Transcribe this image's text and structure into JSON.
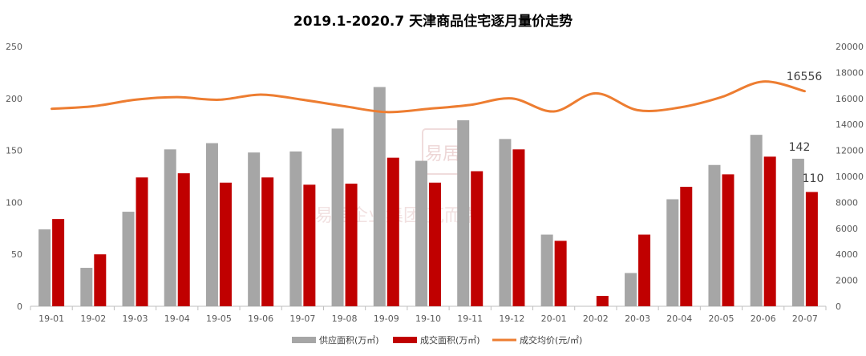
{
  "chart_data": {
    "type": "bar",
    "title": "2019.1-2020.7 天津商品住宅逐月量价走势",
    "categories": [
      "19-01",
      "19-02",
      "19-03",
      "19-04",
      "19-05",
      "19-06",
      "19-07",
      "19-08",
      "19-09",
      "19-10",
      "19-11",
      "19-12",
      "20-01",
      "20-02",
      "20-03",
      "20-04",
      "20-05",
      "20-06",
      "20-07"
    ],
    "series": [
      {
        "name": "供应面积(万㎡)",
        "type": "bar",
        "axis": "left",
        "color": "#A6A6A6",
        "values": [
          74,
          37,
          91,
          151,
          157,
          148,
          149,
          171,
          211,
          140,
          179,
          161,
          69,
          0,
          32,
          103,
          136,
          165,
          142
        ]
      },
      {
        "name": "成交面积(万㎡)",
        "type": "bar",
        "axis": "left",
        "color": "#C00000",
        "values": [
          84,
          50,
          124,
          128,
          119,
          124,
          117,
          118,
          143,
          119,
          130,
          151,
          63,
          10,
          69,
          115,
          127,
          144,
          110
        ]
      },
      {
        "name": "成交均价(元/㎡)",
        "type": "line",
        "axis": "right",
        "color": "#ED7D31",
        "values": [
          15200,
          15400,
          15900,
          16100,
          15900,
          16300,
          15900,
          15400,
          14950,
          15200,
          15500,
          16000,
          15000,
          16400,
          15100,
          15300,
          16100,
          17300,
          16556
        ]
      }
    ],
    "ylim_left": [
      0,
      250
    ],
    "yticks_left": [
      "0",
      "50",
      "100",
      "150",
      "200",
      "250"
    ],
    "ylim_right": [
      0,
      20000
    ],
    "yticks_right": [
      "0",
      "2000",
      "4000",
      "6000",
      "8000",
      "10000",
      "12000",
      "14000",
      "16000",
      "18000",
      "20000"
    ],
    "data_labels": {
      "price_last": "16556",
      "supply_last": "142",
      "deal_last": "110"
    },
    "grid": false,
    "legend_position": "bottom"
  }
}
